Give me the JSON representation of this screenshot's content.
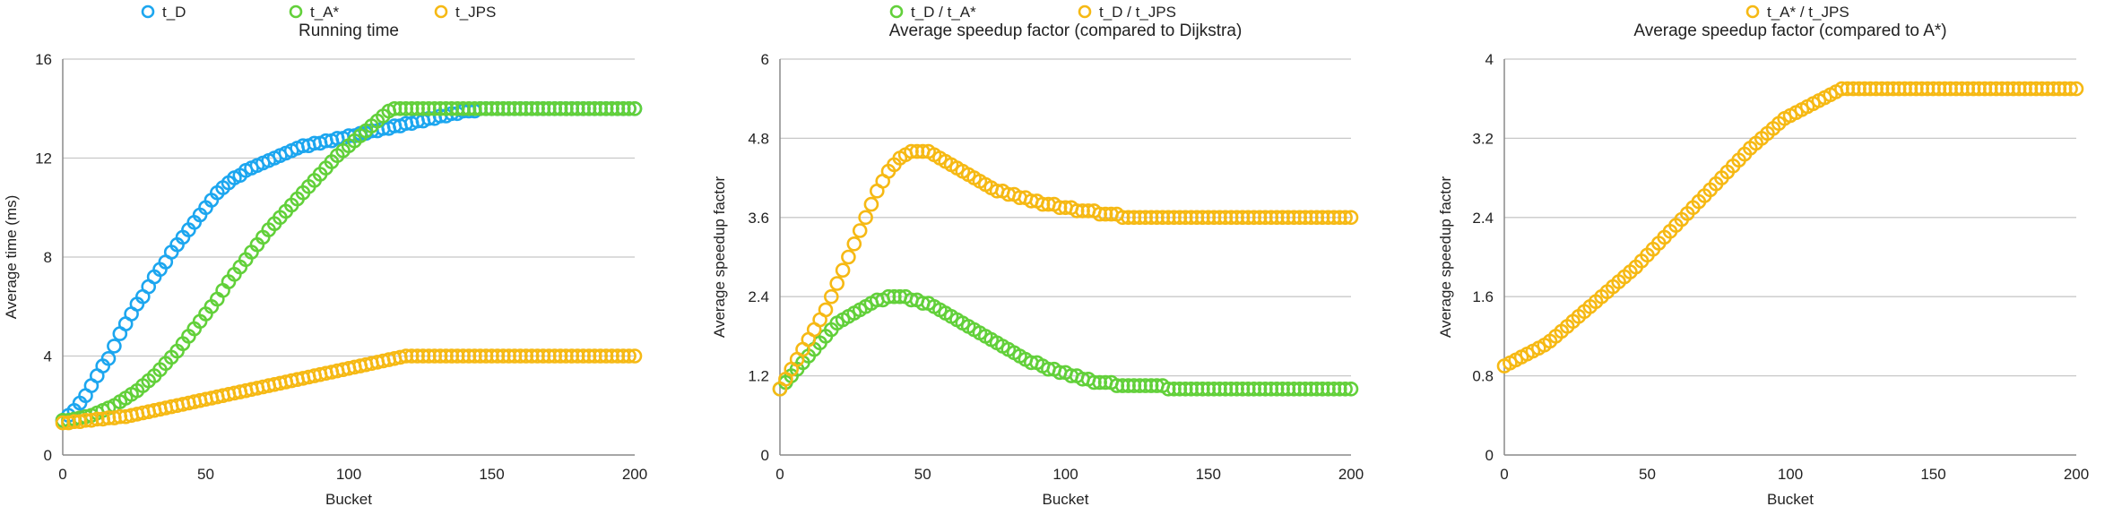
{
  "chart_data": [
    {
      "type": "scatter",
      "title": "Running time",
      "xlabel": "Bucket",
      "ylabel": "Average time (ms)",
      "xlim": [
        0,
        200
      ],
      "ylim": [
        0,
        16
      ],
      "xticks": [
        0,
        50,
        100,
        150,
        200
      ],
      "yticks": [
        0,
        4,
        8,
        12,
        16
      ],
      "grid": true,
      "legend_position": "top",
      "series": [
        {
          "name": "t_D",
          "color": "#1ca6ef",
          "start": 0,
          "step": 2,
          "values": [
            1.4,
            1.6,
            1.8,
            2.1,
            2.4,
            2.8,
            3.2,
            3.6,
            3.9,
            4.4,
            4.9,
            5.3,
            5.7,
            6.1,
            6.4,
            6.8,
            7.2,
            7.5,
            7.8,
            8.2,
            8.5,
            8.8,
            9.1,
            9.4,
            9.7,
            10.0,
            10.3,
            10.6,
            10.8,
            11.0,
            11.2,
            11.3,
            11.5,
            11.6,
            11.7,
            11.8,
            11.9,
            12.0,
            12.1,
            12.2,
            12.3,
            12.4,
            12.5,
            12.5,
            12.6,
            12.6,
            12.7,
            12.7,
            12.8,
            12.8,
            12.9,
            12.9,
            13.0,
            13.0,
            13.1,
            13.1,
            13.2,
            13.2,
            13.3,
            13.3,
            13.4,
            13.4,
            13.5,
            13.5,
            13.6,
            13.6,
            13.7,
            13.7,
            13.8,
            13.8,
            13.9,
            13.9,
            13.9,
            14.0,
            14.0,
            14.0,
            14.0,
            14.0,
            14.0,
            14.0,
            14.0,
            14.0,
            14.0,
            14.0,
            14.0,
            14.0,
            14.0,
            14.0,
            14.0,
            14.0,
            14.0,
            14.0,
            14.0,
            14.0,
            14.0,
            14.0,
            14.0,
            14.0,
            14.0,
            14.0,
            14.0
          ]
        },
        {
          "name": "t_A*",
          "color": "#62d03a",
          "start": 0,
          "step": 2,
          "values": [
            1.4,
            1.4,
            1.45,
            1.5,
            1.55,
            1.6,
            1.7,
            1.8,
            1.9,
            2.0,
            2.15,
            2.3,
            2.45,
            2.6,
            2.8,
            3.0,
            3.2,
            3.45,
            3.7,
            3.95,
            4.2,
            4.5,
            4.8,
            5.1,
            5.4,
            5.7,
            6.0,
            6.3,
            6.65,
            7.0,
            7.3,
            7.6,
            7.9,
            8.2,
            8.5,
            8.8,
            9.1,
            9.35,
            9.6,
            9.85,
            10.1,
            10.35,
            10.6,
            10.85,
            11.1,
            11.35,
            11.6,
            11.85,
            12.1,
            12.3,
            12.5,
            12.7,
            12.9,
            13.1,
            13.3,
            13.5,
            13.7,
            13.9,
            14.0,
            14.0,
            14.0,
            14.0,
            14.0,
            14.0,
            14.0,
            14.0,
            14.0,
            14.0,
            14.0,
            14.0,
            14.0,
            14.0,
            14.0,
            14.0,
            14.0,
            14.0,
            14.0,
            14.0,
            14.0,
            14.0,
            14.0,
            14.0,
            14.0,
            14.0,
            14.0,
            14.0,
            14.0,
            14.0,
            14.0,
            14.0,
            14.0,
            14.0,
            14.0,
            14.0,
            14.0,
            14.0,
            14.0,
            14.0,
            14.0,
            14.0,
            14.0
          ]
        },
        {
          "name": "t_JPS",
          "color": "#f6b914",
          "start": 0,
          "step": 2,
          "values": [
            1.3,
            1.3,
            1.35,
            1.35,
            1.4,
            1.4,
            1.45,
            1.45,
            1.5,
            1.5,
            1.55,
            1.55,
            1.6,
            1.65,
            1.7,
            1.75,
            1.8,
            1.85,
            1.9,
            1.95,
            2.0,
            2.05,
            2.1,
            2.15,
            2.2,
            2.25,
            2.3,
            2.35,
            2.4,
            2.45,
            2.5,
            2.55,
            2.6,
            2.65,
            2.7,
            2.75,
            2.8,
            2.85,
            2.9,
            2.95,
            3.0,
            3.05,
            3.1,
            3.15,
            3.2,
            3.25,
            3.3,
            3.35,
            3.4,
            3.45,
            3.5,
            3.55,
            3.6,
            3.65,
            3.7,
            3.75,
            3.8,
            3.85,
            3.9,
            3.95,
            4.0,
            4.0,
            4.0,
            4.0,
            4.0,
            4.0,
            4.0,
            4.0,
            4.0,
            4.0,
            4.0,
            4.0,
            4.0,
            4.0,
            4.0,
            4.0,
            4.0,
            4.0,
            4.0,
            4.0,
            4.0,
            4.0,
            4.0,
            4.0,
            4.0,
            4.0,
            4.0,
            4.0,
            4.0,
            4.0,
            4.0,
            4.0,
            4.0,
            4.0,
            4.0,
            4.0,
            4.0,
            4.0,
            4.0,
            4.0,
            4.0
          ]
        }
      ]
    },
    {
      "type": "scatter",
      "title": "Average speedup factor (compared to Dijkstra)",
      "xlabel": "Bucket",
      "ylabel": "Average speedup factor",
      "xlim": [
        0,
        200
      ],
      "ylim": [
        0,
        6
      ],
      "xticks": [
        0,
        50,
        100,
        150,
        200
      ],
      "yticks": [
        0,
        1.2,
        2.4,
        3.6,
        4.8,
        6
      ],
      "grid": true,
      "legend_position": "top",
      "series": [
        {
          "name": "t_D / t_A*",
          "color": "#62d03a",
          "start": 0,
          "step": 2,
          "values": [
            1.0,
            1.1,
            1.2,
            1.3,
            1.4,
            1.5,
            1.6,
            1.7,
            1.8,
            1.9,
            2.0,
            2.05,
            2.1,
            2.15,
            2.2,
            2.25,
            2.3,
            2.35,
            2.35,
            2.4,
            2.4,
            2.4,
            2.4,
            2.35,
            2.35,
            2.3,
            2.3,
            2.25,
            2.2,
            2.15,
            2.1,
            2.05,
            2.0,
            1.95,
            1.9,
            1.85,
            1.8,
            1.75,
            1.7,
            1.65,
            1.6,
            1.55,
            1.5,
            1.45,
            1.4,
            1.4,
            1.35,
            1.3,
            1.3,
            1.25,
            1.25,
            1.2,
            1.2,
            1.15,
            1.15,
            1.1,
            1.1,
            1.1,
            1.1,
            1.05,
            1.05,
            1.05,
            1.05,
            1.05,
            1.05,
            1.05,
            1.05,
            1.05,
            1.0,
            1.0,
            1.0,
            1.0,
            1.0,
            1.0,
            1.0,
            1.0,
            1.0,
            1.0,
            1.0,
            1.0,
            1.0,
            1.0,
            1.0,
            1.0,
            1.0,
            1.0,
            1.0,
            1.0,
            1.0,
            1.0,
            1.0,
            1.0,
            1.0,
            1.0,
            1.0,
            1.0,
            1.0,
            1.0,
            1.0,
            1.0,
            1.0
          ]
        },
        {
          "name": "t_D / t_JPS",
          "color": "#f6b914",
          "start": 0,
          "step": 2,
          "values": [
            1.0,
            1.15,
            1.3,
            1.45,
            1.6,
            1.75,
            1.9,
            2.05,
            2.2,
            2.4,
            2.6,
            2.8,
            3.0,
            3.2,
            3.4,
            3.6,
            3.8,
            4.0,
            4.15,
            4.3,
            4.4,
            4.5,
            4.55,
            4.6,
            4.6,
            4.6,
            4.6,
            4.55,
            4.5,
            4.45,
            4.4,
            4.35,
            4.3,
            4.25,
            4.2,
            4.15,
            4.1,
            4.05,
            4.0,
            4.0,
            3.95,
            3.95,
            3.9,
            3.9,
            3.85,
            3.85,
            3.8,
            3.8,
            3.8,
            3.75,
            3.75,
            3.75,
            3.7,
            3.7,
            3.7,
            3.7,
            3.65,
            3.65,
            3.65,
            3.65,
            3.6,
            3.6,
            3.6,
            3.6,
            3.6,
            3.6,
            3.6,
            3.6,
            3.6,
            3.6,
            3.6,
            3.6,
            3.6,
            3.6,
            3.6,
            3.6,
            3.6,
            3.6,
            3.6,
            3.6,
            3.6,
            3.6,
            3.6,
            3.6,
            3.6,
            3.6,
            3.6,
            3.6,
            3.6,
            3.6,
            3.6,
            3.6,
            3.6,
            3.6,
            3.6,
            3.6,
            3.6,
            3.6,
            3.6,
            3.6,
            3.6
          ]
        }
      ]
    },
    {
      "type": "scatter",
      "title": "Average speedup factor (compared to A*)",
      "xlabel": "Bucket",
      "ylabel": "Average speedup factor",
      "xlim": [
        0,
        200
      ],
      "ylim": [
        0,
        4
      ],
      "xticks": [
        0,
        50,
        100,
        150,
        200
      ],
      "yticks": [
        0,
        0.8,
        1.6,
        2.4,
        3.2,
        4
      ],
      "grid": true,
      "legend_position": "top",
      "series": [
        {
          "name": "t_A* / t_JPS",
          "color": "#f6b914",
          "start": 0,
          "step": 2,
          "values": [
            0.9,
            0.93,
            0.96,
            0.99,
            1.02,
            1.05,
            1.08,
            1.11,
            1.15,
            1.2,
            1.25,
            1.3,
            1.35,
            1.4,
            1.45,
            1.5,
            1.55,
            1.6,
            1.65,
            1.7,
            1.75,
            1.8,
            1.85,
            1.9,
            1.96,
            2.02,
            2.08,
            2.14,
            2.2,
            2.26,
            2.32,
            2.38,
            2.44,
            2.5,
            2.56,
            2.62,
            2.68,
            2.74,
            2.8,
            2.86,
            2.92,
            2.98,
            3.04,
            3.1,
            3.15,
            3.2,
            3.25,
            3.3,
            3.35,
            3.4,
            3.43,
            3.46,
            3.49,
            3.52,
            3.55,
            3.58,
            3.61,
            3.64,
            3.67,
            3.7,
            3.7,
            3.7,
            3.7,
            3.7,
            3.7,
            3.7,
            3.7,
            3.7,
            3.7,
            3.7,
            3.7,
            3.7,
            3.7,
            3.7,
            3.7,
            3.7,
            3.7,
            3.7,
            3.7,
            3.7,
            3.7,
            3.7,
            3.7,
            3.7,
            3.7,
            3.7,
            3.7,
            3.7,
            3.7,
            3.7,
            3.7,
            3.7,
            3.7,
            3.7,
            3.7,
            3.7,
            3.7,
            3.7,
            3.7,
            3.7,
            3.7
          ]
        }
      ]
    }
  ]
}
